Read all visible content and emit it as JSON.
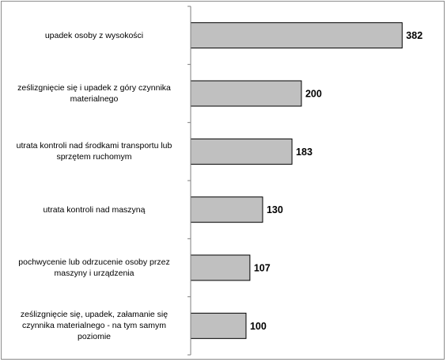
{
  "chart_data": {
    "type": "bar",
    "orientation": "horizontal",
    "categories": [
      "upadek osoby z wysokości",
      "ześlizgnięcie się i upadek z góry czynnika materialnego",
      "utrata kontroli nad środkami transportu lub sprzętem ruchomym",
      "utrata kontroli nad maszyną",
      "pochwycenie lub odrzucenie osoby przez maszyny i urządzenia",
      "ześlizgnięcie się, upadek, załamanie się czynnika materialnego - na tym samym poziomie"
    ],
    "values": [
      382,
      200,
      183,
      130,
      107,
      100
    ],
    "data_labels": [
      "382",
      "200",
      "183",
      "130",
      "107",
      "100"
    ],
    "title": "",
    "xlabel": "",
    "ylabel": "",
    "xlim": [
      0,
      400
    ],
    "grid": false,
    "legend": "none",
    "bar_color": "#c0c0c0",
    "bar_edge_color": "#000000",
    "axis_color": "#7f7f7f"
  }
}
